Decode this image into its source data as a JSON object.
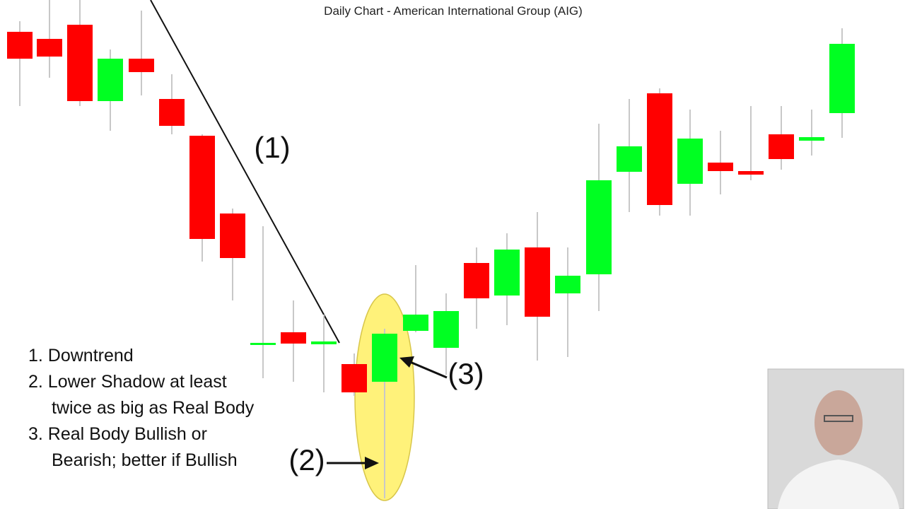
{
  "title": "Daily Chart - American International Group (AIG)",
  "annotations": {
    "one": "(1)",
    "two": "(2)",
    "three": "(3)"
  },
  "notes": [
    "1. Downtrend",
    "2. Lower Shadow at least twice as big as Real Body",
    "3. Real Body Bullish or Bearish; better if Bullish"
  ]
}
